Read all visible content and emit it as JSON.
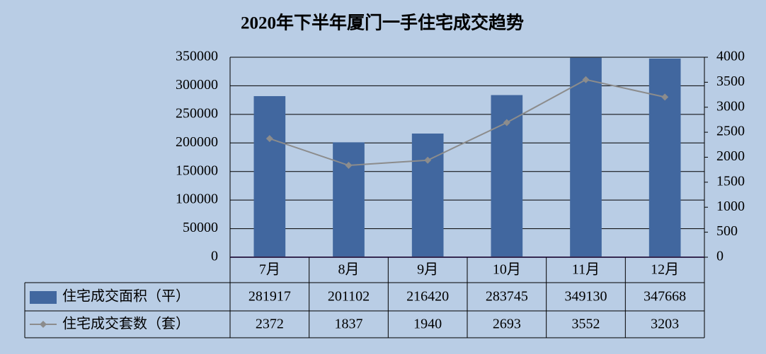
{
  "chart_data": {
    "type": "bar",
    "title": "2020年下半年厦门一手住宅成交趋势",
    "categories": [
      "7月",
      "8月",
      "9月",
      "10月",
      "11月",
      "12月"
    ],
    "series": [
      {
        "name": "住宅成交面积（平）",
        "color": "#41679f",
        "values": [
          281917,
          201102,
          216420,
          283745,
          349130,
          347668
        ]
      },
      {
        "name": "住宅成交套数（套）",
        "color": "#8c8c8c",
        "axis": "y2",
        "type": "line",
        "values": [
          2372,
          1837,
          1940,
          2693,
          3552,
          3203
        ]
      }
    ],
    "ylim": [
      0,
      350000
    ],
    "yticks": [
      0,
      50000,
      100000,
      150000,
      200000,
      250000,
      300000,
      350000
    ],
    "y2lim": [
      0,
      4000
    ],
    "y2ticks": [
      0,
      500,
      1000,
      1500,
      2000,
      2500,
      3000,
      3500,
      4000
    ],
    "grid": true
  }
}
